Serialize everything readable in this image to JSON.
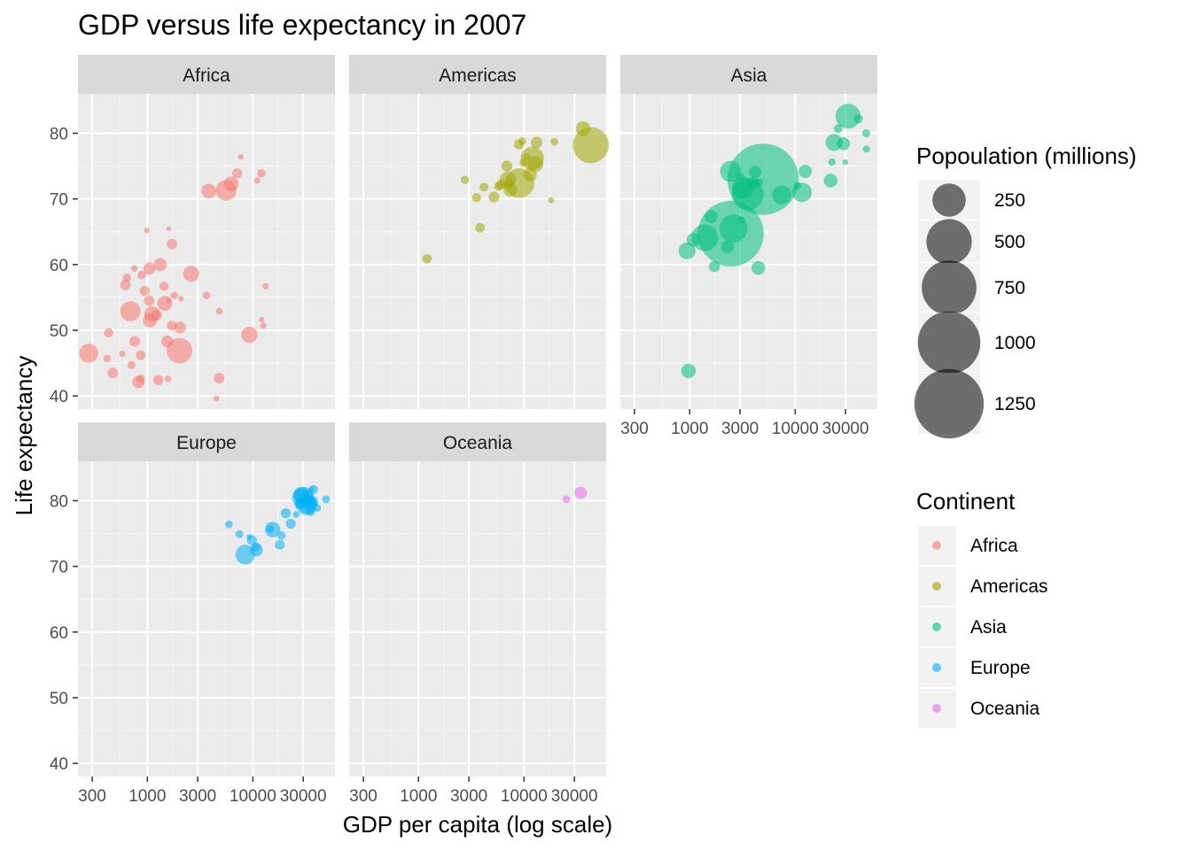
{
  "chart_data": {
    "type": "scatter",
    "title": "GDP versus life expectancy in 2007",
    "xlabel": "GDP per capita (log scale)",
    "ylabel": "Life expectancy",
    "x_scale": "log10",
    "xlim": [
      220,
      60000
    ],
    "ylim": [
      38,
      86
    ],
    "x_ticks": [
      300,
      1000,
      3000,
      10000,
      30000
    ],
    "x_tick_labels": [
      "300",
      "1000",
      "3000",
      "10000",
      "30000"
    ],
    "y_ticks": [
      40,
      50,
      60,
      70,
      80
    ],
    "y_tick_labels": [
      "40",
      "50",
      "60",
      "70",
      "80"
    ],
    "grid": true,
    "legend_position": "right",
    "size_legend": {
      "title": "Popoulation (millions)",
      "values": [
        250,
        500,
        750,
        1000,
        1250
      ],
      "labels": [
        "250",
        "500",
        "750",
        "1000",
        "1250"
      ]
    },
    "color_legend": {
      "title": "Continent",
      "entries": [
        "Africa",
        "Americas",
        "Asia",
        "Europe",
        "Oceania"
      ],
      "colors": [
        "#F8766D",
        "#A3A500",
        "#00BF7D",
        "#00B0F6",
        "#E76BF3"
      ]
    },
    "panels": [
      {
        "name": "Africa",
        "color": "#F8766D",
        "points": [
          [
            6223,
            72.3,
            33
          ],
          [
            4797,
            42.7,
            12
          ],
          [
            1441,
            56.7,
            8
          ],
          [
            12570,
            50.7,
            1.6
          ],
          [
            1217,
            52.3,
            14
          ],
          [
            430,
            49.6,
            8
          ],
          [
            2042,
            50.4,
            18
          ],
          [
            706,
            44.7,
            4.4
          ],
          [
            1704,
            50.7,
            10
          ],
          [
            987,
            65.2,
            0.7
          ],
          [
            278,
            46.5,
            65
          ],
          [
            3633,
            55.3,
            3.8
          ],
          [
            1545,
            48.3,
            18
          ],
          [
            2082,
            54.8,
            0.5
          ],
          [
            5581,
            71.3,
            80
          ],
          [
            12154,
            51.6,
            0.55
          ],
          [
            641,
            58.0,
            4.9
          ],
          [
            691,
            52.9,
            76
          ],
          [
            13206,
            56.7,
            1.45
          ],
          [
            753,
            59.4,
            1.7
          ],
          [
            1327,
            60.0,
            23
          ],
          [
            943,
            56.0,
            9.9
          ],
          [
            579,
            46.4,
            1.5
          ],
          [
            1463,
            54.1,
            35
          ],
          [
            1569,
            42.6,
            2.0
          ],
          [
            415,
            45.7,
            3.2
          ],
          [
            12057,
            73.9,
            6.0
          ],
          [
            1045,
            59.4,
            19
          ],
          [
            759,
            48.3,
            13
          ],
          [
            1042,
            54.5,
            12
          ],
          [
            1803,
            55.3,
            3.3
          ],
          [
            10957,
            72.8,
            1.25
          ],
          [
            3820,
            71.2,
            33
          ],
          [
            824,
            42.1,
            20
          ],
          [
            4811,
            52.9,
            2.0
          ],
          [
            620,
            56.9,
            12
          ],
          [
            2014,
            46.9,
            135
          ],
          [
            7670,
            76.4,
            0.8
          ],
          [
            863,
            46.2,
            8.9
          ],
          [
            1598,
            65.5,
            0.2
          ],
          [
            1712,
            63.1,
            12
          ],
          [
            863,
            42.6,
            6.1
          ],
          [
            9270,
            49.3,
            44
          ],
          [
            2602,
            58.6,
            42
          ],
          [
            4513,
            39.6,
            1.1
          ],
          [
            1107,
            52.5,
            38
          ],
          [
            883,
            58.4,
            5.7
          ],
          [
            7093,
            73.9,
            10
          ],
          [
            1056,
            51.5,
            29
          ],
          [
            1271,
            42.4,
            11
          ],
          [
            470,
            43.5,
            12
          ],
          [
            1593,
            54.5,
            0.2
          ]
        ]
      },
      {
        "name": "Americas",
        "color": "#A3A500",
        "points": [
          [
            12779,
            75.3,
            40
          ],
          [
            3822,
            65.6,
            9.1
          ],
          [
            9066,
            72.4,
            190
          ],
          [
            36319,
            80.7,
            33
          ],
          [
            13172,
            78.6,
            16
          ],
          [
            7007,
            72.9,
            44
          ],
          [
            9645,
            78.8,
            4.1
          ],
          [
            8948,
            78.3,
            11
          ],
          [
            6025,
            72.2,
            9.3
          ],
          [
            6873,
            75.0,
            14
          ],
          [
            5728,
            71.9,
            6.9
          ],
          [
            5186,
            70.3,
            13
          ],
          [
            1202,
            60.9,
            8.5
          ],
          [
            3548,
            70.2,
            7.5
          ],
          [
            7321,
            72.6,
            3.4
          ],
          [
            11978,
            76.2,
            108
          ],
          [
            2749,
            72.9,
            5.7
          ],
          [
            9809,
            75.5,
            3.2
          ],
          [
            4173,
            71.8,
            6.7
          ],
          [
            7409,
            71.4,
            28
          ],
          [
            19329,
            78.7,
            4.0
          ],
          [
            18009,
            69.8,
            1.06
          ],
          [
            42952,
            78.2,
            301
          ],
          [
            10611,
            76.4,
            3.4
          ],
          [
            11416,
            73.7,
            26
          ]
        ]
      },
      {
        "name": "Asia",
        "color": "#00BF7D",
        "points": [
          [
            975,
            43.8,
            32
          ],
          [
            29796,
            75.6,
            0.7
          ],
          [
            1391,
            64.1,
            150
          ],
          [
            1714,
            59.7,
            14.3
          ],
          [
            4959,
            73.0,
            1319
          ],
          [
            39725,
            82.2,
            7.0
          ],
          [
            2452,
            64.7,
            1110
          ],
          [
            3541,
            70.7,
            224
          ],
          [
            11606,
            71.0,
            69
          ],
          [
            4471,
            59.5,
            27
          ],
          [
            25523,
            80.7,
            6.4
          ],
          [
            31656,
            82.6,
            127
          ],
          [
            4519,
            72.5,
            6.1
          ],
          [
            1593,
            67.3,
            23
          ],
          [
            23348,
            78.6,
            49
          ],
          [
            47307,
            77.6,
            2.5
          ],
          [
            10461,
            72.0,
            4.0
          ],
          [
            12452,
            74.2,
            24
          ],
          [
            3096,
            66.8,
            2.9
          ],
          [
            944,
            62.1,
            48
          ],
          [
            1091,
            63.8,
            28
          ],
          [
            22316,
            75.6,
            3.2
          ],
          [
            2606,
            65.5,
            169
          ],
          [
            3190,
            71.7,
            92
          ],
          [
            21655,
            72.8,
            27
          ],
          [
            47143,
            80.0,
            4.6
          ],
          [
            3970,
            72.4,
            20
          ],
          [
            4185,
            74.1,
            20
          ],
          [
            28718,
            78.4,
            23
          ],
          [
            7458,
            70.6,
            65
          ],
          [
            2442,
            74.2,
            85
          ],
          [
            3026,
            73.4,
            4.0
          ],
          [
            2281,
            62.7,
            22
          ]
        ]
      },
      {
        "name": "Europe",
        "color": "#00B0F6",
        "points": [
          [
            5937,
            76.4,
            3.6
          ],
          [
            36126,
            79.8,
            8.2
          ],
          [
            33693,
            79.4,
            10.4
          ],
          [
            7446,
            74.9,
            4.6
          ],
          [
            10681,
            73.0,
            7.3
          ],
          [
            14619,
            75.7,
            4.5
          ],
          [
            22833,
            76.5,
            10.2
          ],
          [
            35278,
            78.3,
            5.5
          ],
          [
            33207,
            79.3,
            5.2
          ],
          [
            30470,
            80.7,
            61
          ],
          [
            32170,
            79.4,
            82
          ],
          [
            27538,
            79.5,
            10.7
          ],
          [
            18009,
            73.3,
            10.0
          ],
          [
            36181,
            81.8,
            0.3
          ],
          [
            40676,
            78.9,
            4.1
          ],
          [
            28570,
            80.5,
            58
          ],
          [
            9254,
            74.5,
            0.68
          ],
          [
            36798,
            79.8,
            16.6
          ],
          [
            49357,
            80.2,
            4.6
          ],
          [
            15390,
            75.6,
            38.5
          ],
          [
            20510,
            78.1,
            10.6
          ],
          [
            10808,
            72.5,
            22.3
          ],
          [
            9787,
            74.0,
            10.2
          ],
          [
            18678,
            74.7,
            5.4
          ],
          [
            25768,
            77.9,
            2.0
          ],
          [
            28821,
            80.9,
            40.4
          ],
          [
            33860,
            80.9,
            9.0
          ],
          [
            37506,
            81.7,
            7.6
          ],
          [
            8458,
            71.8,
            71
          ],
          [
            33203,
            79.4,
            60.8
          ]
        ]
      },
      {
        "name": "Oceania",
        "color": "#E76BF3",
        "points": [
          [
            34435,
            81.2,
            20.4
          ],
          [
            25185,
            80.2,
            4.1
          ]
        ]
      }
    ]
  }
}
